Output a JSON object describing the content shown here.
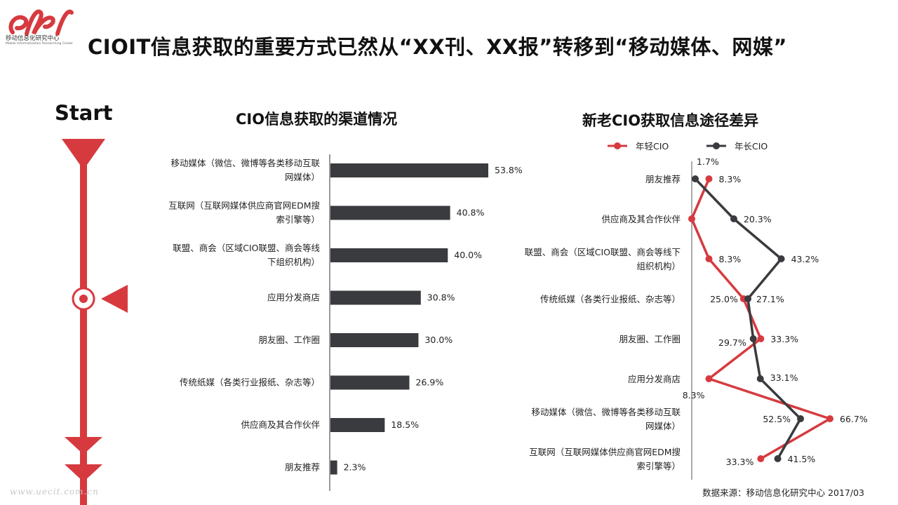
{
  "logo": {
    "name": "移动信息化研究中心",
    "sub": "Mobile Informatization Researching Center"
  },
  "header": {
    "title": "CIOIT信息获取的重要方式已然从“XX刊、XX报”转移到“移动媒体、网媒”"
  },
  "timeline": {
    "start_label": "Start",
    "color": "#d63a3f"
  },
  "chart_data": [
    {
      "type": "bar",
      "orientation": "horizontal",
      "title": "CIO信息获取的渠道情况",
      "categories": [
        [
          "移动媒体（微信、微博等各类移动互联",
          "网媒体）"
        ],
        [
          "互联网（互联网媒体供应商官网EDM搜",
          "索引擎等）"
        ],
        [
          "联盟、商会（区域CIO联盟、商会等线",
          "下组织机构）"
        ],
        [
          "应用分发商店"
        ],
        [
          "朋友圈、工作圈"
        ],
        [
          "传统纸媒（各类行业报纸、杂志等）"
        ],
        [
          "供应商及其合作伙伴"
        ],
        [
          "朋友推荐"
        ]
      ],
      "values": [
        53.8,
        40.8,
        40.0,
        30.8,
        30.0,
        26.9,
        18.5,
        2.3
      ],
      "value_labels": [
        "53.8%",
        "40.8%",
        "40.0%",
        "30.8%",
        "30.0%",
        "26.9%",
        "18.5%",
        "2.3%"
      ],
      "bar_color": "#3a3b3f",
      "xlim": [
        0,
        53.8
      ]
    },
    {
      "type": "line",
      "orientation": "vertical-categories",
      "title": "新老CIO获取信息途径差异",
      "legend_position": "top",
      "categories": [
        [
          "朋友推荐"
        ],
        [
          "供应商及其合作伙伴"
        ],
        [
          "联盟、商会（区域CIO联盟、商会等线下",
          "组织机构）"
        ],
        [
          "传统纸媒（各类行业报纸、杂志等）"
        ],
        [
          "朋友圈、工作圈"
        ],
        [
          "应用分发商店"
        ],
        [
          "移动媒体（微信、微博等各类移动互联",
          "网媒体）"
        ],
        [
          "互联网（互联网媒体供应商官网EDM搜",
          "索引擎等）"
        ]
      ],
      "series": [
        {
          "name": "年轻CIO",
          "color": "#d63a3f",
          "values": [
            8.3,
            0,
            8.3,
            25.0,
            33.3,
            8.3,
            66.7,
            33.3
          ],
          "value_labels": [
            "8.3%",
            "",
            "8.3%",
            "25.0%",
            "33.3%",
            "8.3%",
            "66.7%",
            "33.3%"
          ]
        },
        {
          "name": "年长CIO",
          "color": "#3a3b3f",
          "values": [
            1.7,
            20.3,
            43.2,
            27.1,
            29.7,
            33.1,
            52.5,
            41.5
          ],
          "value_labels": [
            "1.7%",
            "20.3%",
            "43.2%",
            "27.1%",
            "29.7%",
            "33.1%",
            "52.5%",
            "41.5%"
          ]
        }
      ],
      "xlim": [
        0,
        66.7
      ]
    }
  ],
  "footer": {
    "source": "数据来源：移动信息化研究中心 2017/03",
    "watermark": "www.uecit.com.cn"
  }
}
